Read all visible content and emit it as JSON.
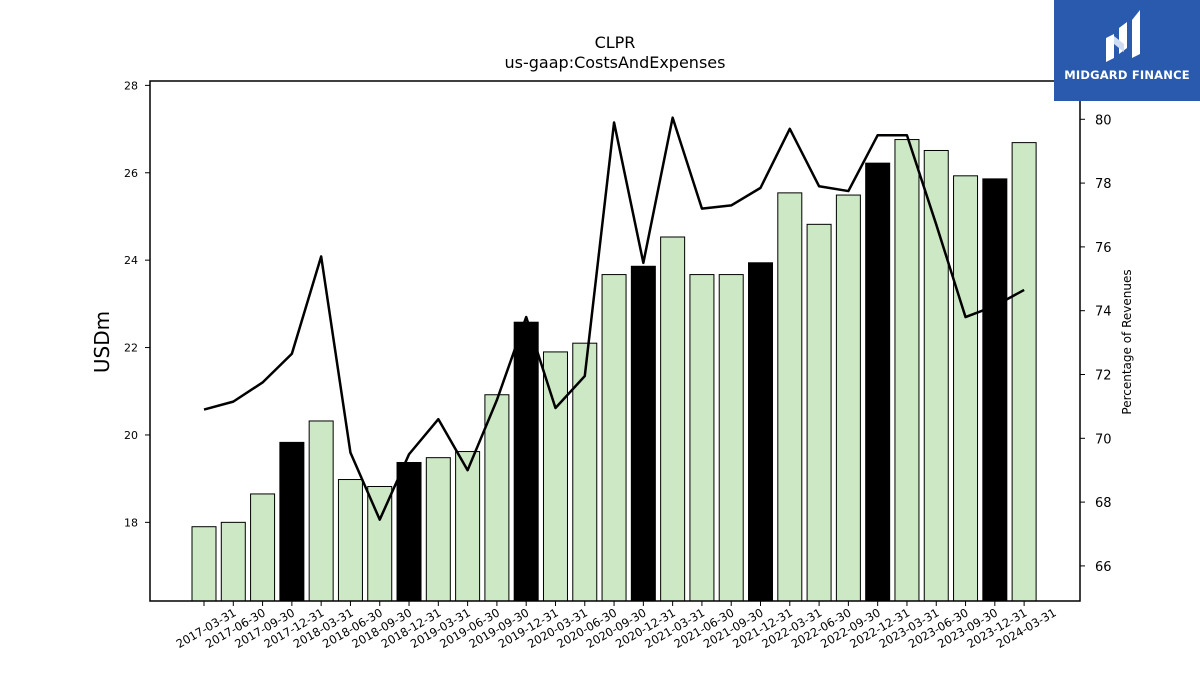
{
  "chart_data": {
    "type": "bar",
    "title": "CLPR",
    "subtitle": "us-gaap:CostsAndExpenses",
    "ylabel": "USDm",
    "y2label": "Percentage of Revenues",
    "ylim": [
      16.2,
      28.1
    ],
    "y2lim": [
      64.9,
      81.2
    ],
    "yticks": [
      18,
      20,
      22,
      24,
      26,
      28
    ],
    "y2ticks": [
      66,
      68,
      70,
      72,
      74,
      76,
      78,
      80
    ],
    "grid": false,
    "categories": [
      "2017-03-31",
      "2017-06-30",
      "2017-09-30",
      "2017-12-31",
      "2018-03-31",
      "2018-06-30",
      "2018-09-30",
      "2018-12-31",
      "2019-03-31",
      "2019-06-30",
      "2019-09-30",
      "2019-12-31",
      "2020-03-31",
      "2020-06-30",
      "2020-09-30",
      "2020-12-31",
      "2021-03-31",
      "2021-06-30",
      "2021-09-30",
      "2021-12-31",
      "2022-03-31",
      "2022-06-30",
      "2022-09-30",
      "2022-12-31",
      "2023-03-31",
      "2023-06-30",
      "2023-09-30",
      "2023-12-31",
      "2024-03-31"
    ],
    "series": [
      {
        "kind": "bar",
        "axis": "left",
        "values": [
          17.9,
          18.0,
          18.65,
          19.83,
          20.32,
          18.98,
          18.82,
          19.37,
          19.48,
          19.62,
          20.92,
          22.58,
          21.9,
          22.1,
          23.67,
          23.86,
          24.53,
          23.67,
          23.67,
          23.94,
          25.54,
          24.82,
          25.49,
          26.22,
          26.76,
          26.51,
          25.93,
          25.86,
          26.69
        ]
      },
      {
        "kind": "line",
        "axis": "right",
        "values": [
          70.9,
          71.15,
          71.75,
          72.65,
          75.7,
          69.55,
          67.45,
          69.5,
          70.6,
          69.0,
          71.2,
          73.8,
          70.95,
          71.95,
          79.9,
          75.5,
          80.05,
          77.2,
          77.3,
          77.85,
          79.7,
          77.9,
          77.75,
          79.5,
          79.5,
          76.7,
          73.8,
          74.15,
          74.65
        ]
      }
    ],
    "colors": {
      "bar_fill": "#cde8c4",
      "bar_highlight": "#000000",
      "bar_edge": "#000000",
      "line": "#000000"
    }
  },
  "logo": {
    "text": "MIDGARD FINANCE",
    "bg": "#2a5aae"
  }
}
